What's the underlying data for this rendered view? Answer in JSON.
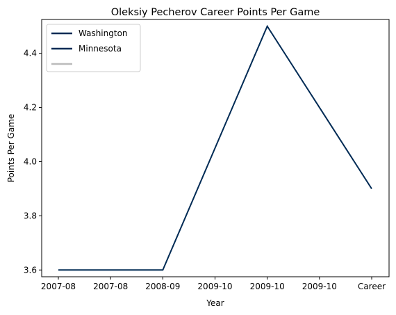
{
  "chart_data": {
    "type": "line",
    "title": "Oleksiy Pecherov Career Points Per Game",
    "xlabel": "Year",
    "ylabel": "Points Per Game",
    "categories": [
      "2007-08",
      "2007-08",
      "2008-09",
      "2009-10",
      "2009-10",
      "2009-10",
      "Career"
    ],
    "series": [
      {
        "name": "Washington",
        "color": "#002b55",
        "values": [
          3.6,
          3.6,
          3.6,
          4.05,
          4.5,
          4.2,
          3.9
        ]
      }
    ],
    "legend": {
      "placement": "top-left",
      "entries": [
        {
          "label": "Washington",
          "color": "#002b55"
        },
        {
          "label": "Minnesota",
          "color": "#002b55"
        },
        {
          "label": "",
          "color": "#bbbbbb"
        }
      ]
    },
    "ylim": [
      3.575,
      4.525
    ],
    "yticks": [
      3.6,
      3.8,
      4.0,
      4.2,
      4.4
    ],
    "ytick_labels": [
      "3.6",
      "3.8",
      "4.0",
      "4.2",
      "4.4"
    ],
    "grid": false
  }
}
